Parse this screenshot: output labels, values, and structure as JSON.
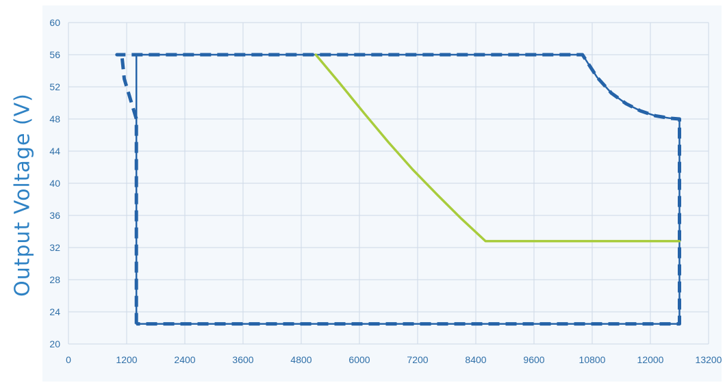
{
  "chart_data": {
    "type": "line",
    "title": "",
    "xlabel": "",
    "ylabel": "Output  Voltage (V)",
    "xlim": [
      0,
      13200
    ],
    "ylim": [
      20,
      60
    ],
    "x_ticks": [
      "0",
      "1200",
      "2400",
      "3600",
      "4800",
      "6000",
      "7200",
      "8400",
      "9600",
      "10800",
      "12000",
      "13200"
    ],
    "y_ticks": [
      "20",
      "24",
      "28",
      "32",
      "36",
      "40",
      "44",
      "48",
      "52",
      "56",
      "60"
    ],
    "grid": true,
    "legend": "none",
    "colors": {
      "grid": "#cdd8e6",
      "envelope": "#2563a8",
      "green_curve": "#a8cc3c",
      "ylabel": "#2f82c4",
      "ticks": "#2f6fa8"
    },
    "series": [
      {
        "style": "solid",
        "color": "#2563a8",
        "points": [
          [
            1400,
            22.5
          ],
          [
            1400,
            56
          ],
          [
            10600,
            56
          ],
          [
            10900,
            53.2
          ],
          [
            11200,
            51.2
          ],
          [
            11500,
            49.9
          ],
          [
            11800,
            49.0
          ],
          [
            12100,
            48.4
          ],
          [
            12400,
            48.1
          ],
          [
            12600,
            48
          ],
          [
            12600,
            22.5
          ],
          [
            1400,
            22.5
          ]
        ]
      },
      {
        "style": "dashed",
        "color": "#2563a8",
        "points": [
          [
            1400,
            22.5
          ],
          [
            1400,
            48
          ],
          [
            1150,
            53
          ],
          [
            1100,
            56
          ],
          [
            1000,
            56
          ],
          [
            10600,
            56
          ],
          [
            10900,
            53.2
          ],
          [
            11200,
            51.2
          ],
          [
            11500,
            49.9
          ],
          [
            11800,
            49.0
          ],
          [
            12100,
            48.4
          ],
          [
            12400,
            48.1
          ],
          [
            12600,
            48
          ],
          [
            12600,
            22.5
          ],
          [
            1400,
            22.5
          ]
        ]
      },
      {
        "style": "solid",
        "color": "#a8cc3c",
        "points": [
          [
            5100,
            56
          ],
          [
            5600,
            52.4
          ],
          [
            6100,
            48.7
          ],
          [
            6600,
            45.1
          ],
          [
            7100,
            41.7
          ],
          [
            7600,
            38.6
          ],
          [
            8100,
            35.6
          ],
          [
            8600,
            32.8
          ],
          [
            12600,
            32.8
          ]
        ]
      }
    ]
  }
}
